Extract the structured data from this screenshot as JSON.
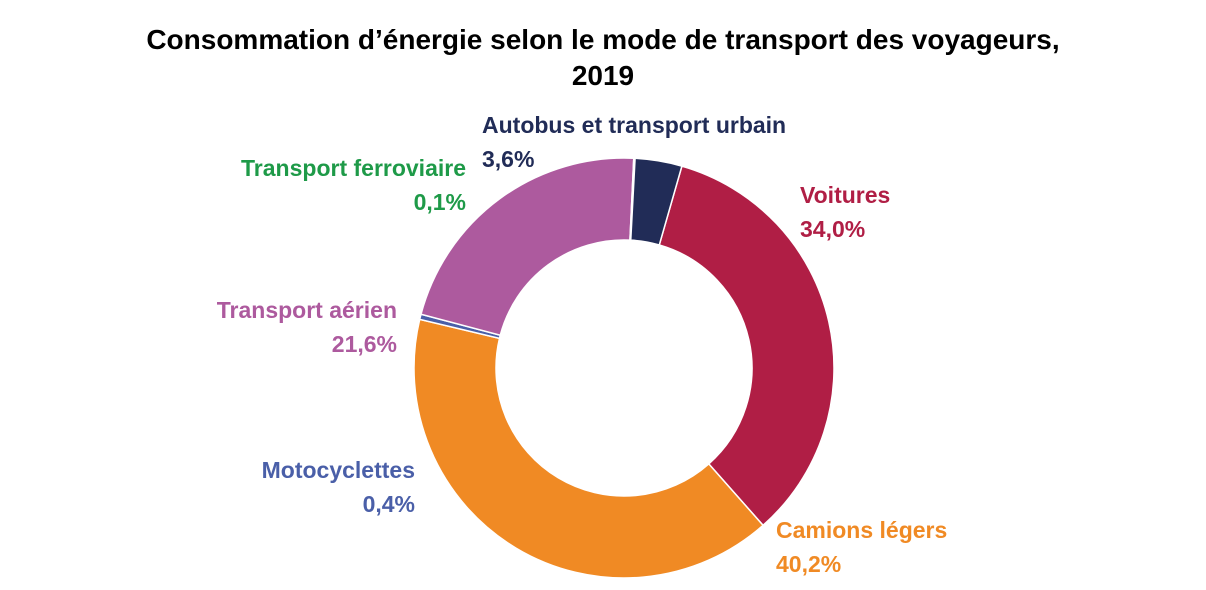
{
  "chart_data": {
    "type": "pie",
    "variant": "donut",
    "title_line1": "Consommation d’énergie selon le mode de transport des voyageurs,",
    "title_line2": "2019",
    "slices": [
      {
        "name": "Voitures",
        "value": 34.0,
        "label": "34,0%",
        "color": "#b01e45"
      },
      {
        "name": "Camions légers",
        "value": 40.2,
        "label": "40,2%",
        "color": "#f08a24"
      },
      {
        "name": "Motocyclettes",
        "value": 0.4,
        "label": "0,4%",
        "color": "#4a5fa8"
      },
      {
        "name": "Transport aérien",
        "value": 21.6,
        "label": "21,6%",
        "color": "#ad5a9e"
      },
      {
        "name": "Transport ferroviaire",
        "value": 0.1,
        "label": "0,1%",
        "color": "#1e9a48"
      },
      {
        "name": "Autobus et transport urbain",
        "value": 3.6,
        "label": "3,6%",
        "color": "#212c57"
      }
    ]
  }
}
